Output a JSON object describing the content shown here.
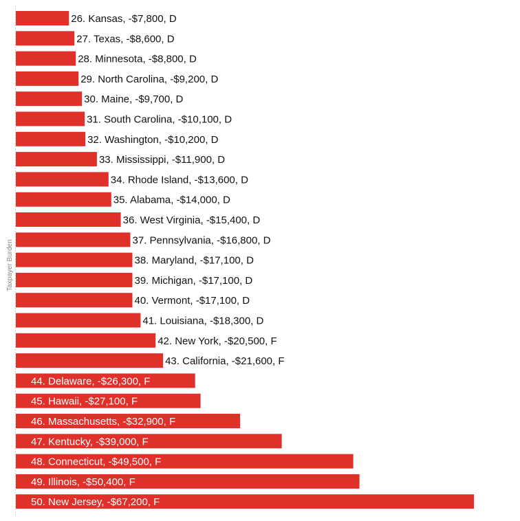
{
  "chart_data": {
    "type": "bar",
    "orientation": "horizontal",
    "ylabel": "Taxpayer Burden",
    "xlim": [
      0,
      -68000
    ],
    "grid": false,
    "legend": "none",
    "colors": {
      "bar": "#e0302a",
      "label_outside": "#111111",
      "label_inside": "#ffffff"
    },
    "bars": [
      {
        "rank": 26,
        "state": "Kansas",
        "value": -7800,
        "grade": "D",
        "label": "26. Kansas, -$7,800, D"
      },
      {
        "rank": 27,
        "state": "Texas",
        "value": -8600,
        "grade": "D",
        "label": "27. Texas, -$8,600, D"
      },
      {
        "rank": 28,
        "state": "Minnesota",
        "value": -8800,
        "grade": "D",
        "label": "28. Minnesota, -$8,800, D"
      },
      {
        "rank": 29,
        "state": "North Carolina",
        "value": -9200,
        "grade": "D",
        "label": "29. North Carolina, -$9,200, D"
      },
      {
        "rank": 30,
        "state": "Maine",
        "value": -9700,
        "grade": "D",
        "label": "30. Maine, -$9,700, D"
      },
      {
        "rank": 31,
        "state": "South Carolina",
        "value": -10100,
        "grade": "D",
        "label": "31. South Carolina, -$10,100, D"
      },
      {
        "rank": 32,
        "state": "Washington",
        "value": -10200,
        "grade": "D",
        "label": "32. Washington, -$10,200, D"
      },
      {
        "rank": 33,
        "state": "Mississippi",
        "value": -11900,
        "grade": "D",
        "label": "33. Mississippi, -$11,900, D"
      },
      {
        "rank": 34,
        "state": "Rhode Island",
        "value": -13600,
        "grade": "D",
        "label": "34. Rhode Island, -$13,600, D"
      },
      {
        "rank": 35,
        "state": "Alabama",
        "value": -14000,
        "grade": "D",
        "label": "35. Alabama, -$14,000, D"
      },
      {
        "rank": 36,
        "state": "West Virginia",
        "value": -15400,
        "grade": "D",
        "label": "36. West Virginia, -$15,400, D"
      },
      {
        "rank": 37,
        "state": "Pennsylvania",
        "value": -16800,
        "grade": "D",
        "label": "37. Pennsylvania, -$16,800, D"
      },
      {
        "rank": 38,
        "state": "Maryland",
        "value": -17100,
        "grade": "D",
        "label": "38. Maryland, -$17,100, D"
      },
      {
        "rank": 39,
        "state": "Michigan",
        "value": -17100,
        "grade": "D",
        "label": "39. Michigan, -$17,100, D"
      },
      {
        "rank": 40,
        "state": "Vermont",
        "value": -17100,
        "grade": "D",
        "label": "40. Vermont, -$17,100, D"
      },
      {
        "rank": 41,
        "state": "Louisiana",
        "value": -18300,
        "grade": "D",
        "label": "41. Louisiana, -$18,300, D"
      },
      {
        "rank": 42,
        "state": "New York",
        "value": -20500,
        "grade": "F",
        "label": "42. New York, -$20,500, F"
      },
      {
        "rank": 43,
        "state": "California",
        "value": -21600,
        "grade": "F",
        "label": "43. California, -$21,600, F"
      },
      {
        "rank": 44,
        "state": "Delaware",
        "value": -26300,
        "grade": "F",
        "label": "44. Delaware, -$26,300, F"
      },
      {
        "rank": 45,
        "state": "Hawaii",
        "value": -27100,
        "grade": "F",
        "label": "45. Hawaii, -$27,100, F"
      },
      {
        "rank": 46,
        "state": "Massachusetts",
        "value": -32900,
        "grade": "F",
        "label": "46. Massachusetts, -$32,900, F"
      },
      {
        "rank": 47,
        "state": "Kentucky",
        "value": -39000,
        "grade": "F",
        "label": "47. Kentucky, -$39,000, F"
      },
      {
        "rank": 48,
        "state": "Connecticut",
        "value": -49500,
        "grade": "F",
        "label": "48. Connecticut, -$49,500, F"
      },
      {
        "rank": 49,
        "state": "Illinois",
        "value": -50400,
        "grade": "F",
        "label": "49. Illinois, -$50,400, F"
      },
      {
        "rank": 50,
        "state": "New Jersey",
        "value": -67200,
        "grade": "F",
        "label": "50. New Jersey, -$67,200, F"
      }
    ]
  }
}
